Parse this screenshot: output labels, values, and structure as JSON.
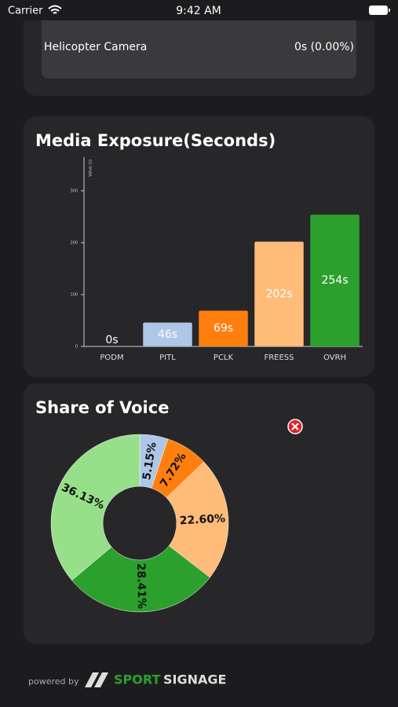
{
  "status_bar": {
    "carrier": "Carrier",
    "time": "9:42 AM"
  },
  "top_card": {
    "label": "Helicopter Camera",
    "value": "0s (0.00%)"
  },
  "chart_data": [
    {
      "type": "bar",
      "title": "Media Exposure(Seconds)",
      "y_label": "Value (s)",
      "categories": [
        "PODM",
        "PITL",
        "PCLK",
        "FREESS",
        "OVRH"
      ],
      "values": [
        0,
        46,
        69,
        202,
        254
      ],
      "value_labels": [
        "0s",
        "46s",
        "69s",
        "202s",
        "254s"
      ],
      "colors": [
        "#aec7e8",
        "#aec7e8",
        "#ff7f0e",
        "#ffbb78",
        "#2ca02c"
      ],
      "ylim": [
        0,
        365
      ],
      "yticks": [
        0,
        100,
        200,
        300
      ]
    },
    {
      "type": "pie",
      "title": "Share of Voice",
      "values": [
        5.15,
        7.72,
        22.6,
        28.41,
        36.13
      ],
      "value_labels": [
        "5.15%",
        "7.72%",
        "22.60%",
        "28.41%",
        "36.13%"
      ],
      "colors": [
        "#aec7e8",
        "#ff7f0e",
        "#ffbb78",
        "#2ca02c",
        "#98df8a"
      ]
    }
  ],
  "footer": {
    "powered_by": "powered by",
    "brand_1": "SPORT",
    "brand_2": "SIGNAGE"
  }
}
